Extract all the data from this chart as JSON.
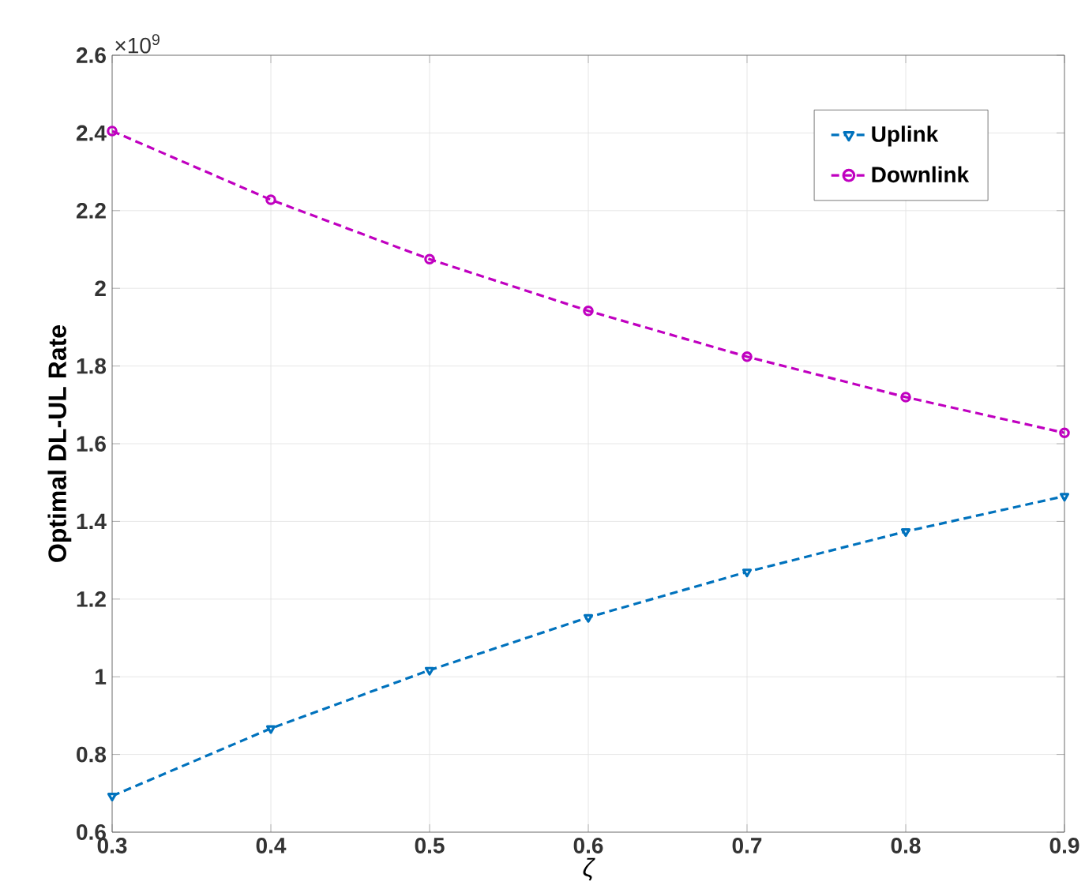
{
  "chart_data": {
    "type": "line",
    "xlabel": "ζ",
    "ylabel": "Optimal DL-UL Rate",
    "x": [
      0.3,
      0.4,
      0.5,
      0.6,
      0.7,
      0.8,
      0.9
    ],
    "series": [
      {
        "name": "Uplink",
        "color": "#0072bd",
        "marker": "triangle",
        "values": [
          0.693,
          0.867,
          1.017,
          1.153,
          1.27,
          1.374,
          1.465
        ]
      },
      {
        "name": "Downlink",
        "color": "#c000c0",
        "marker": "circle",
        "values": [
          2.405,
          2.228,
          2.075,
          1.942,
          1.824,
          1.72,
          1.628
        ]
      }
    ],
    "xlim": [
      0.3,
      0.9
    ],
    "ylim": [
      0.6,
      2.6
    ],
    "xticks": [
      0.3,
      0.4,
      0.5,
      0.6,
      0.7,
      0.8,
      0.9
    ],
    "yticks": [
      0.6,
      0.8,
      1,
      1.2,
      1.4,
      1.6,
      1.8,
      2,
      2.2,
      2.4,
      2.6
    ],
    "annotations": [
      "×10$^{9}$"
    ],
    "grid": true,
    "legend": "top right",
    "line_style": "dashed"
  }
}
